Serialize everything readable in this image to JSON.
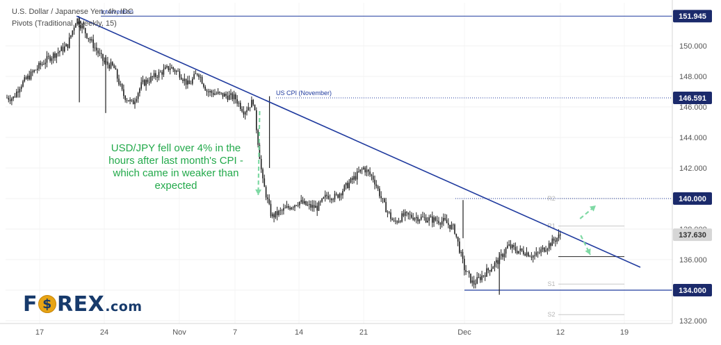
{
  "header": {
    "title": "U.S. Dollar / Japanese Yen, 4h, IDC",
    "subtitle": "Pivots (Traditional, Weekly, 15)"
  },
  "annotation": {
    "lines": [
      "USD/JPY fell over 4% in the",
      "hours after last month's CPI -",
      "which came in weaker than",
      "expected"
    ]
  },
  "logo": {
    "prefix": "F",
    "suffix_main": "REX",
    "domain": ".com"
  },
  "colors": {
    "price_bars": "#1e1e1e",
    "trend_line": "#1f3a9e",
    "arrow_green": "#7fd9a4",
    "callout_text": "#22a94a",
    "label_dark_bg": "#1b2a6b",
    "label_gray_bg": "#d6d6d6",
    "pivot_lines": "#c8c8c8",
    "logo_navy": "#173a6b",
    "logo_gold": "#e7a414"
  },
  "chart_data": {
    "type": "line",
    "title": "U.S. Dollar / Japanese Yen, 4h, IDC",
    "subtitle": "Pivots (Traditional, Weekly, 15)",
    "x_ticks": [
      "17",
      "24",
      "Nov",
      "7",
      "14",
      "21",
      "Dec",
      "12",
      "19"
    ],
    "y_ticks": [
      "132.000",
      "134.000",
      "136.000",
      "138.000",
      "140.000",
      "142.000",
      "144.000",
      "146.000",
      "148.000",
      "150.000"
    ],
    "y_range": [
      131.8,
      152.4
    ],
    "grid": true,
    "series": [
      {
        "type": "line",
        "values_by_date": [
          [
            "2022-10-13",
            146.6
          ],
          [
            "2022-10-14",
            147.4
          ],
          [
            "2022-10-17",
            148.7
          ],
          [
            "2022-10-18",
            149.2
          ],
          [
            "2022-10-19",
            149.6
          ],
          [
            "2022-10-20",
            150.0
          ],
          [
            "2022-10-21",
            151.8
          ],
          [
            "2022-10-24",
            148.9
          ],
          [
            "2022-10-25",
            148.6
          ],
          [
            "2022-10-26",
            146.8
          ],
          [
            "2022-10-27",
            146.2
          ],
          [
            "2022-10-28",
            147.5
          ],
          [
            "2022-10-31",
            148.6
          ],
          [
            "2022-11-01",
            148.2
          ],
          [
            "2022-11-02",
            147.4
          ],
          [
            "2022-11-03",
            148.3
          ],
          [
            "2022-11-04",
            147.0
          ],
          [
            "2022-11-07",
            146.6
          ],
          [
            "2022-11-08",
            145.7
          ],
          [
            "2022-11-09",
            146.4
          ],
          [
            "2022-11-10",
            141.2
          ],
          [
            "2022-11-11",
            138.8
          ],
          [
            "2022-11-14",
            139.8
          ],
          [
            "2022-11-15",
            139.5
          ],
          [
            "2022-11-16",
            139.4
          ],
          [
            "2022-11-17",
            140.2
          ],
          [
            "2022-11-18",
            140.1
          ],
          [
            "2022-11-21",
            142.0
          ],
          [
            "2022-11-22",
            141.3
          ],
          [
            "2022-11-23",
            139.6
          ],
          [
            "2022-11-24",
            138.4
          ],
          [
            "2022-11-25",
            138.9
          ],
          [
            "2022-11-28",
            138.6
          ],
          [
            "2022-11-29",
            138.5
          ],
          [
            "2022-11-30",
            138.0
          ],
          [
            "2022-12-01",
            135.4
          ],
          [
            "2022-12-02",
            134.4
          ],
          [
            "2022-12-05",
            136.0
          ],
          [
            "2022-12-06",
            136.9
          ],
          [
            "2022-12-07",
            136.6
          ],
          [
            "2022-12-08",
            136.5
          ],
          [
            "2022-12-09",
            136.2
          ],
          [
            "2022-12-12",
            137.6
          ]
        ]
      }
    ],
    "horizontal_levels": [
      {
        "value": 151.945,
        "label": "Intervention"
      },
      {
        "value": 146.591,
        "label": "US CPI (November)"
      },
      {
        "value": 140.0,
        "label": ""
      },
      {
        "value": 134.0,
        "label": ""
      }
    ],
    "price_labels": [
      {
        "value": 151.945,
        "text": "151.945",
        "style": "dark"
      },
      {
        "value": 146.591,
        "text": "146.591",
        "style": "dark"
      },
      {
        "value": 140.0,
        "text": "140.000",
        "style": "dark"
      },
      {
        "value": 137.63,
        "text": "137.630",
        "style": "gray"
      },
      {
        "value": 134.0,
        "text": "134.000",
        "style": "dark"
      }
    ],
    "pivot_levels": [
      {
        "name": "R2",
        "value": 140.0
      },
      {
        "name": "R1",
        "value": 138.2
      },
      {
        "name": "P",
        "value": 136.2
      },
      {
        "name": "S1",
        "value": 134.4
      },
      {
        "name": "S2",
        "value": 132.4
      }
    ],
    "trend_line": {
      "from": [
        "2022-10-21",
        151.945
      ],
      "to": [
        "2022-12-21",
        135.5
      ]
    }
  }
}
